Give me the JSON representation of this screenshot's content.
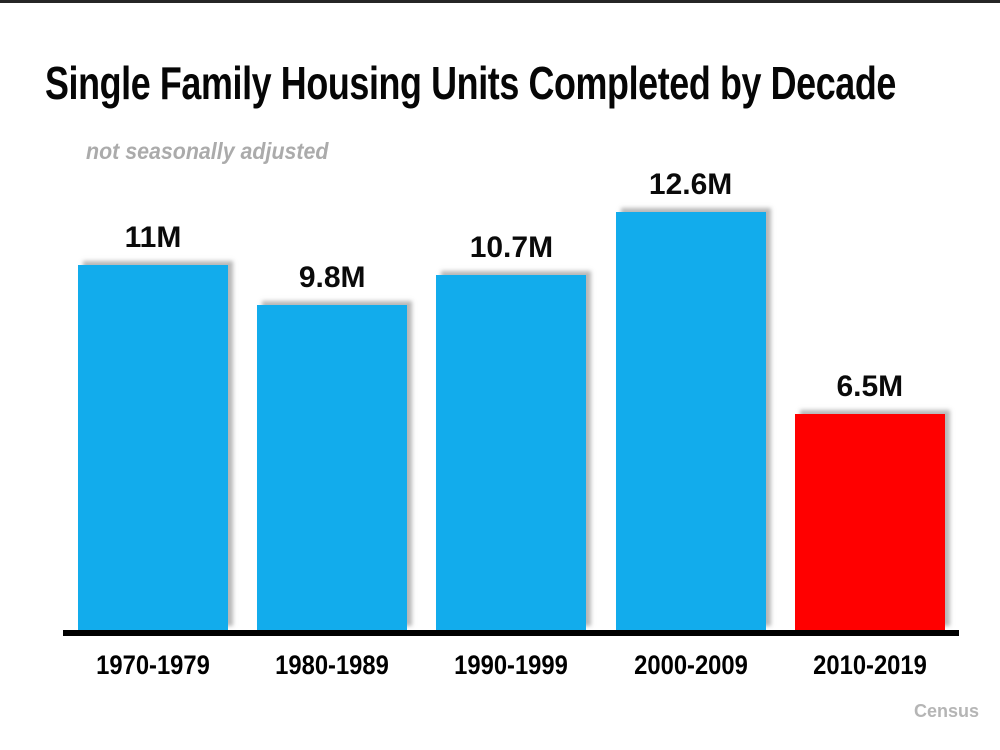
{
  "page": {
    "title": "Single Family Housing Units Completed by Decade",
    "subtitle": "not seasonally adjusted",
    "source": "Census"
  },
  "chart_data": {
    "type": "bar",
    "title": "Single Family Housing Units Completed by Decade",
    "subtitle": "not seasonally adjusted",
    "categories": [
      "1970-1979",
      "1980-1989",
      "1990-1999",
      "2000-2009",
      "2010-2019"
    ],
    "values": [
      11,
      9.8,
      10.7,
      12.6,
      6.5
    ],
    "value_labels": [
      "11M",
      "9.8M",
      "10.7M",
      "12.6M",
      "6.5M"
    ],
    "bar_colors": [
      "#12acec",
      "#12acec",
      "#12acec",
      "#12acec",
      "#ff0000"
    ],
    "colors": {
      "bar_default": "#12acec",
      "bar_highlight": "#ff0000",
      "axis": "#000000",
      "subtitle_gray": "#ababab",
      "source_gray": "#b5b5b5"
    },
    "xlabel": "",
    "ylabel": "",
    "ylim": [
      0,
      13.5
    ],
    "grid": false,
    "legend": false,
    "source": "Census"
  }
}
